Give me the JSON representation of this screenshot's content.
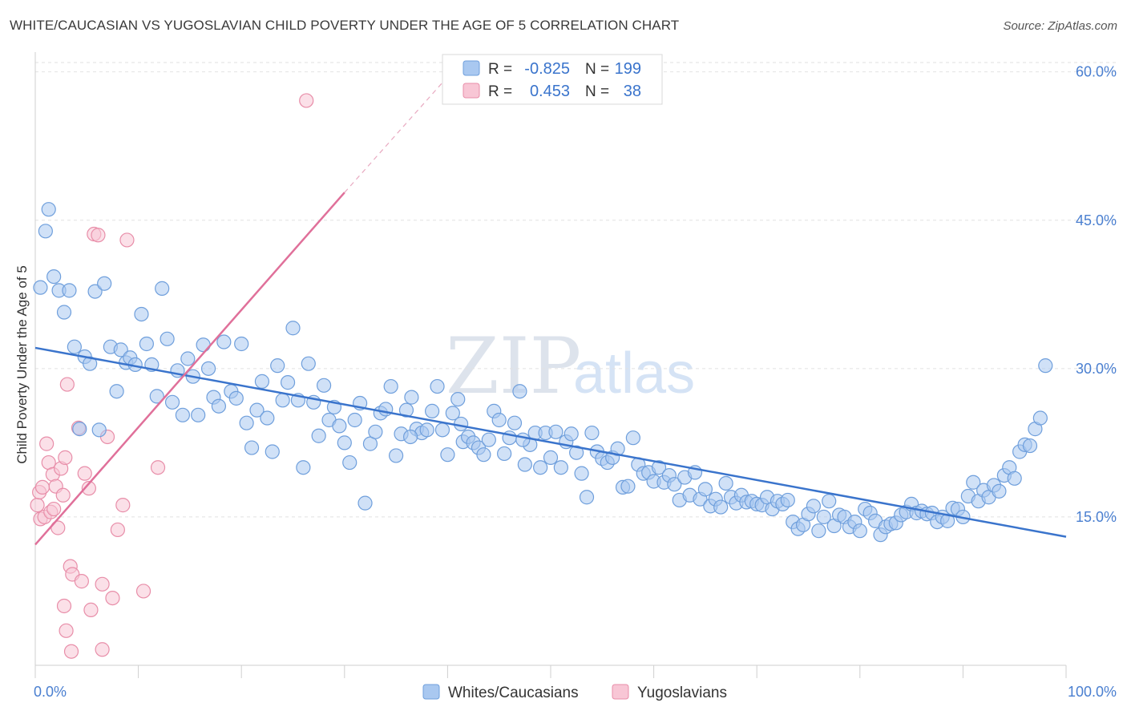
{
  "title": "WHITE/CAUCASIAN VS YUGOSLAVIAN CHILD POVERTY UNDER THE AGE OF 5 CORRELATION CHART",
  "source": "Source: ZipAtlas.com",
  "watermark": {
    "zip": "ZIP",
    "atlas": "atlas"
  },
  "colors": {
    "blue_fill": "#a9c8f0",
    "blue_stroke": "#6f9fdc",
    "blue_line": "#3a74cc",
    "pink_fill": "#f8c6d5",
    "pink_stroke": "#e88ea9",
    "pink_line": "#e0709a"
  },
  "legend": {
    "r_label": "R =",
    "n_label": "N =",
    "rows": [
      {
        "r": "-0.825",
        "n": "199"
      },
      {
        "r": "0.453",
        "n": "38"
      }
    ]
  },
  "bottom_legend": [
    "Whites/Caucasians",
    "Yugoslavians"
  ],
  "chart_data": {
    "type": "scatter",
    "xlabel": "",
    "ylabel": "Child Poverty Under the Age of 5",
    "x_tick_labels": [
      "0.0%",
      "100.0%"
    ],
    "y_tick_labels": [
      "15.0%",
      "30.0%",
      "45.0%",
      "60.0%"
    ],
    "y_ticks": [
      15,
      30,
      45,
      60
    ],
    "xlim": [
      0,
      100
    ],
    "ylim": [
      0,
      62
    ],
    "grid": true,
    "legend_position": "top-center",
    "series": [
      {
        "name": "Whites/Caucasians",
        "trend": {
          "x": [
            0,
            100
          ],
          "y": [
            32.1,
            13.0
          ]
        },
        "points": [
          [
            0.5,
            38.2
          ],
          [
            1.0,
            43.9
          ],
          [
            1.3,
            46.1
          ],
          [
            1.8,
            39.3
          ],
          [
            2.3,
            37.9
          ],
          [
            2.8,
            35.7
          ],
          [
            3.3,
            37.9
          ],
          [
            3.8,
            32.2
          ],
          [
            4.3,
            23.9
          ],
          [
            4.8,
            31.2
          ],
          [
            5.3,
            30.5
          ],
          [
            5.8,
            37.8
          ],
          [
            6.2,
            23.8
          ],
          [
            6.7,
            38.6
          ],
          [
            7.3,
            32.2
          ],
          [
            7.9,
            27.7
          ],
          [
            8.3,
            31.9
          ],
          [
            8.8,
            30.6
          ],
          [
            9.2,
            31.1
          ],
          [
            9.7,
            30.4
          ],
          [
            10.3,
            35.5
          ],
          [
            10.8,
            32.5
          ],
          [
            11.3,
            30.4
          ],
          [
            11.8,
            27.2
          ],
          [
            12.3,
            38.1
          ],
          [
            12.8,
            33.0
          ],
          [
            13.3,
            26.6
          ],
          [
            13.8,
            29.8
          ],
          [
            14.3,
            25.3
          ],
          [
            14.8,
            31.0
          ],
          [
            15.3,
            29.2
          ],
          [
            15.8,
            25.3
          ],
          [
            16.3,
            32.4
          ],
          [
            16.8,
            30.0
          ],
          [
            17.3,
            27.1
          ],
          [
            17.8,
            26.2
          ],
          [
            18.3,
            32.7
          ],
          [
            19.0,
            27.7
          ],
          [
            19.5,
            27.0
          ],
          [
            20.0,
            32.5
          ],
          [
            20.5,
            24.5
          ],
          [
            21.0,
            22.0
          ],
          [
            21.5,
            25.8
          ],
          [
            22.0,
            28.7
          ],
          [
            22.5,
            25.0
          ],
          [
            23.0,
            21.6
          ],
          [
            23.5,
            30.3
          ],
          [
            24.0,
            26.8
          ],
          [
            24.5,
            28.6
          ],
          [
            25.0,
            34.1
          ],
          [
            25.5,
            26.8
          ],
          [
            26.0,
            20.0
          ],
          [
            26.5,
            30.5
          ],
          [
            27.0,
            26.6
          ],
          [
            27.5,
            23.2
          ],
          [
            28.0,
            28.3
          ],
          [
            28.5,
            24.8
          ],
          [
            29.0,
            26.1
          ],
          [
            29.5,
            24.2
          ],
          [
            30.0,
            22.5
          ],
          [
            30.5,
            20.5
          ],
          [
            31.0,
            24.8
          ],
          [
            31.5,
            26.5
          ],
          [
            32.0,
            16.4
          ],
          [
            32.5,
            22.4
          ],
          [
            33.0,
            23.6
          ],
          [
            33.5,
            25.5
          ],
          [
            34.0,
            25.9
          ],
          [
            34.5,
            28.2
          ],
          [
            35.0,
            21.2
          ],
          [
            35.5,
            23.4
          ],
          [
            36.0,
            25.8
          ],
          [
            36.5,
            27.1
          ],
          [
            37.0,
            23.9
          ],
          [
            37.5,
            23.5
          ],
          [
            38.0,
            23.8
          ],
          [
            38.5,
            25.7
          ],
          [
            39.0,
            28.2
          ],
          [
            39.5,
            23.8
          ],
          [
            40.0,
            21.3
          ],
          [
            40.5,
            25.5
          ],
          [
            41.0,
            26.9
          ],
          [
            41.5,
            22.6
          ],
          [
            42.0,
            23.1
          ],
          [
            42.5,
            22.5
          ],
          [
            43.0,
            22.0
          ],
          [
            43.5,
            21.3
          ],
          [
            44.0,
            22.8
          ],
          [
            44.5,
            25.7
          ],
          [
            45.0,
            24.8
          ],
          [
            45.5,
            21.4
          ],
          [
            46.0,
            23.0
          ],
          [
            46.5,
            24.5
          ],
          [
            47.0,
            27.7
          ],
          [
            47.5,
            20.3
          ],
          [
            48.0,
            22.3
          ],
          [
            48.5,
            23.5
          ],
          [
            49.0,
            20.0
          ],
          [
            49.5,
            23.5
          ],
          [
            50.0,
            21.0
          ],
          [
            50.5,
            23.6
          ],
          [
            51.0,
            20.0
          ],
          [
            51.5,
            22.6
          ],
          [
            52.0,
            23.4
          ],
          [
            52.5,
            21.5
          ],
          [
            53.0,
            19.4
          ],
          [
            53.5,
            17.0
          ],
          [
            54.0,
            23.5
          ],
          [
            54.5,
            21.6
          ],
          [
            55.0,
            20.9
          ],
          [
            55.5,
            20.5
          ],
          [
            56.0,
            21.0
          ],
          [
            56.5,
            21.9
          ],
          [
            57.0,
            18.0
          ],
          [
            57.5,
            18.1
          ],
          [
            58.0,
            23.0
          ],
          [
            58.5,
            20.3
          ],
          [
            59.0,
            19.4
          ],
          [
            59.5,
            19.5
          ],
          [
            60.0,
            18.6
          ],
          [
            60.5,
            20.0
          ],
          [
            61.0,
            18.5
          ],
          [
            61.5,
            19.2
          ],
          [
            62.0,
            18.3
          ],
          [
            62.5,
            16.7
          ],
          [
            63.0,
            19.0
          ],
          [
            63.5,
            17.2
          ],
          [
            64.0,
            19.5
          ],
          [
            64.5,
            16.8
          ],
          [
            65.0,
            17.8
          ],
          [
            65.5,
            16.1
          ],
          [
            66.0,
            16.8
          ],
          [
            66.5,
            16.0
          ],
          [
            67.0,
            18.4
          ],
          [
            67.5,
            17.0
          ],
          [
            68.0,
            16.4
          ],
          [
            68.5,
            17.2
          ],
          [
            69.0,
            16.5
          ],
          [
            69.5,
            16.6
          ],
          [
            70.0,
            16.3
          ],
          [
            70.5,
            16.2
          ],
          [
            71.0,
            17.0
          ],
          [
            71.5,
            15.8
          ],
          [
            72.0,
            16.6
          ],
          [
            72.5,
            16.3
          ],
          [
            73.0,
            16.7
          ],
          [
            73.5,
            14.5
          ],
          [
            74.0,
            13.8
          ],
          [
            74.5,
            14.2
          ],
          [
            75.0,
            15.3
          ],
          [
            75.5,
            16.1
          ],
          [
            76.0,
            13.6
          ],
          [
            76.5,
            15.0
          ],
          [
            77.0,
            16.6
          ],
          [
            77.5,
            14.1
          ],
          [
            78.0,
            15.2
          ],
          [
            78.5,
            15.0
          ],
          [
            79.0,
            14.0
          ],
          [
            79.5,
            14.5
          ],
          [
            80.0,
            13.6
          ],
          [
            80.5,
            15.8
          ],
          [
            81.0,
            15.4
          ],
          [
            81.5,
            14.6
          ],
          [
            82.0,
            13.2
          ],
          [
            82.5,
            14.0
          ],
          [
            83.0,
            14.3
          ],
          [
            83.5,
            14.4
          ],
          [
            84.0,
            15.2
          ],
          [
            84.5,
            15.5
          ],
          [
            85.0,
            16.3
          ],
          [
            85.5,
            15.4
          ],
          [
            86.0,
            15.6
          ],
          [
            86.5,
            15.3
          ],
          [
            87.0,
            15.4
          ],
          [
            87.5,
            14.5
          ],
          [
            88.0,
            15.0
          ],
          [
            88.5,
            14.6
          ],
          [
            89.0,
            15.9
          ],
          [
            89.5,
            15.8
          ],
          [
            90.0,
            15.0
          ],
          [
            90.5,
            17.1
          ],
          [
            91.0,
            18.5
          ],
          [
            91.5,
            16.6
          ],
          [
            92.0,
            17.7
          ],
          [
            92.5,
            17.0
          ],
          [
            93.0,
            18.2
          ],
          [
            93.5,
            17.6
          ],
          [
            94.0,
            19.2
          ],
          [
            94.5,
            20.0
          ],
          [
            95.0,
            18.9
          ],
          [
            95.5,
            21.6
          ],
          [
            96.0,
            22.3
          ],
          [
            96.5,
            22.2
          ],
          [
            97.0,
            23.9
          ],
          [
            97.5,
            25.0
          ],
          [
            98.0,
            30.3
          ],
          [
            36.4,
            23.1
          ],
          [
            41.3,
            24.4
          ],
          [
            47.3,
            22.8
          ]
        ]
      },
      {
        "name": "Yugoslavians",
        "trend": {
          "x": [
            0,
            30
          ],
          "y": [
            12.2,
            47.8
          ]
        },
        "trend_extended": {
          "x": [
            30,
            40
          ],
          "y": [
            47.8,
            59.5
          ]
        },
        "points": [
          [
            0.2,
            16.2
          ],
          [
            0.4,
            17.5
          ],
          [
            0.5,
            14.8
          ],
          [
            0.7,
            18.0
          ],
          [
            0.9,
            15.0
          ],
          [
            1.1,
            22.4
          ],
          [
            1.3,
            20.5
          ],
          [
            1.5,
            15.5
          ],
          [
            1.7,
            19.3
          ],
          [
            1.8,
            15.8
          ],
          [
            2.0,
            18.1
          ],
          [
            2.2,
            13.9
          ],
          [
            2.5,
            19.9
          ],
          [
            2.7,
            17.2
          ],
          [
            2.9,
            21.0
          ],
          [
            3.1,
            28.4
          ],
          [
            3.4,
            10.0
          ],
          [
            3.6,
            9.2
          ],
          [
            4.2,
            24.0
          ],
          [
            4.5,
            8.5
          ],
          [
            4.8,
            19.4
          ],
          [
            5.2,
            17.9
          ],
          [
            5.4,
            5.6
          ],
          [
            5.7,
            43.6
          ],
          [
            6.1,
            43.5
          ],
          [
            6.5,
            8.2
          ],
          [
            7.0,
            23.1
          ],
          [
            7.5,
            6.8
          ],
          [
            8.0,
            13.7
          ],
          [
            8.5,
            16.2
          ],
          [
            8.9,
            43.0
          ],
          [
            10.5,
            7.5
          ],
          [
            11.9,
            20.0
          ],
          [
            2.8,
            6.0
          ],
          [
            3.0,
            3.5
          ],
          [
            3.5,
            1.4
          ],
          [
            6.5,
            1.6
          ],
          [
            26.3,
            57.1
          ]
        ]
      }
    ]
  }
}
